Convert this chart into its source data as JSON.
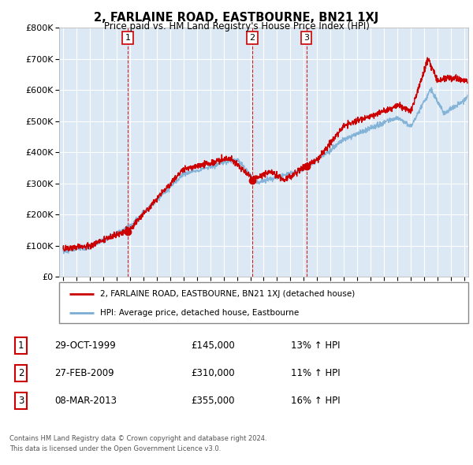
{
  "title": "2, FARLAINE ROAD, EASTBOURNE, BN21 1XJ",
  "subtitle": "Price paid vs. HM Land Registry's House Price Index (HPI)",
  "red_label": "2, FARLAINE ROAD, EASTBOURNE, BN21 1XJ (detached house)",
  "blue_label": "HPI: Average price, detached house, Eastbourne",
  "transactions": [
    {
      "num": 1,
      "date": "29-OCT-1999",
      "price": 145000,
      "hpi_pct": "13%",
      "direction": "↑"
    },
    {
      "num": 2,
      "date": "27-FEB-2009",
      "price": 310000,
      "hpi_pct": "11%",
      "direction": "↑"
    },
    {
      "num": 3,
      "date": "08-MAR-2013",
      "price": 355000,
      "hpi_pct": "16%",
      "direction": "↑"
    }
  ],
  "footer1": "Contains HM Land Registry data © Crown copyright and database right 2024.",
  "footer2": "This data is licensed under the Open Government Licence v3.0.",
  "ylim": [
    0,
    800000
  ],
  "yticks": [
    0,
    100000,
    200000,
    300000,
    400000,
    500000,
    600000,
    700000,
    800000
  ],
  "red_color": "#cc0000",
  "blue_color": "#7aadd4",
  "dashed_color": "#cc0000",
  "plot_bg_color": "#dce9f5",
  "background_color": "#ffffff",
  "grid_color": "#ffffff"
}
